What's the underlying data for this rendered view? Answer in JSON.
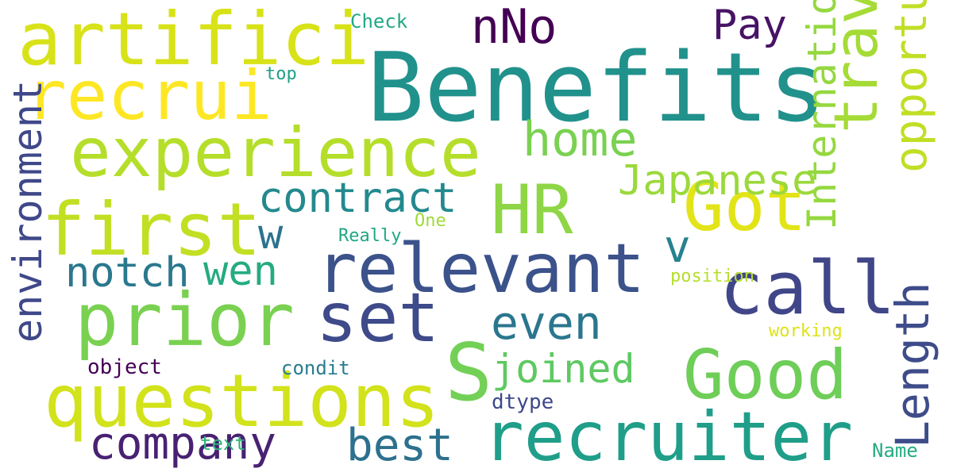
{
  "words": [
    {
      "text": "Benefits",
      "color": "#21918c"
    },
    {
      "text": "artifici",
      "color": "#d8e219"
    },
    {
      "text": "recrui",
      "color": "#fde725"
    },
    {
      "text": "experience",
      "color": "#b5de2b"
    },
    {
      "text": "first",
      "color": "#c2df23"
    },
    {
      "text": "prior",
      "color": "#7ad151"
    },
    {
      "text": "questions",
      "color": "#d2e21b"
    },
    {
      "text": "relevant",
      "color": "#3b528b"
    },
    {
      "text": "set",
      "color": "#3e4a89"
    },
    {
      "text": "call",
      "color": "#404688"
    },
    {
      "text": "recruiter",
      "color": "#1f9e89"
    },
    {
      "text": "Good",
      "color": "#6ece58"
    },
    {
      "text": "S",
      "color": "#73d056"
    },
    {
      "text": "HR",
      "color": "#8ed645"
    },
    {
      "text": "Got",
      "color": "#e2e418"
    },
    {
      "text": "nNo",
      "color": "#440154"
    },
    {
      "text": "Pay",
      "color": "#471365"
    },
    {
      "text": "home",
      "color": "#7ad151"
    },
    {
      "text": "contract",
      "color": "#23898e"
    },
    {
      "text": "Japanese",
      "color": "#9bd93c"
    },
    {
      "text": "w",
      "color": "#2c728e"
    },
    {
      "text": "v",
      "color": "#26828e"
    },
    {
      "text": "notch",
      "color": "#2a788e"
    },
    {
      "text": "wen",
      "color": "#25ab82"
    },
    {
      "text": "even",
      "color": "#2a768e"
    },
    {
      "text": "joined",
      "color": "#5ec962"
    },
    {
      "text": "company",
      "color": "#482173"
    },
    {
      "text": "best",
      "color": "#2c718e"
    },
    {
      "text": "Check",
      "color": "#22a884"
    },
    {
      "text": "top",
      "color": "#1fa088"
    },
    {
      "text": "One",
      "color": "#a0da39"
    },
    {
      "text": "Really",
      "color": "#21a685"
    },
    {
      "text": "position",
      "color": "#b5de2b"
    },
    {
      "text": "working",
      "color": "#dde318"
    },
    {
      "text": "object",
      "color": "#440154"
    },
    {
      "text": "condit",
      "color": "#287c8e"
    },
    {
      "text": "dtype",
      "color": "#3e4989"
    },
    {
      "text": "text",
      "color": "#2fb47c"
    },
    {
      "text": "Name",
      "color": "#25ac82"
    },
    {
      "text": "travel",
      "color": "#a5db36"
    },
    {
      "text": "environment",
      "color": "#3f4889"
    },
    {
      "text": "International",
      "color": "#95d840"
    },
    {
      "text": "opportunity",
      "color": "#c0df25"
    },
    {
      "text": "Length",
      "color": "#3e4c8a"
    }
  ]
}
